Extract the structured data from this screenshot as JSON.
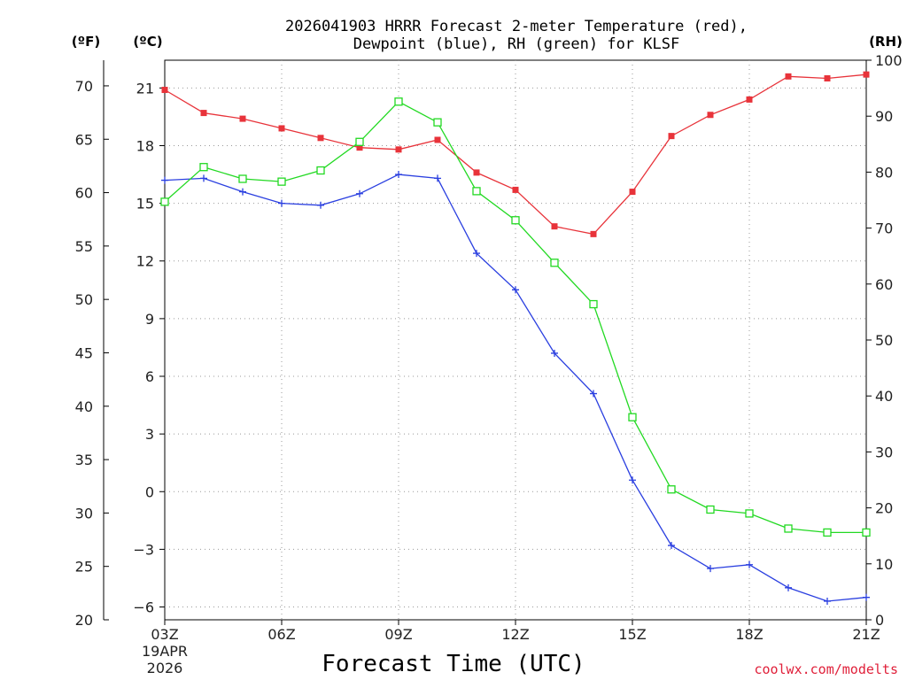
{
  "chart_data": {
    "type": "line",
    "title_line1": "2026041903 HRRR Forecast 2-meter Temperature (red),",
    "title_line2": "Dewpoint (blue), RH (green) for KLSF",
    "xlabel": "Forecast Time (UTC)",
    "date_label_line1": "19APR",
    "date_label_line2": "2026",
    "credit": "coolwx.com/modelts",
    "credit_color": "#e0203a",
    "unit_f": "(ºF)",
    "unit_c": "(ºC)",
    "unit_rh": "(RH)",
    "hours": [
      3,
      4,
      5,
      6,
      7,
      8,
      9,
      10,
      11,
      12,
      13,
      14,
      15,
      16,
      17,
      18,
      19,
      20,
      21
    ],
    "x_ticks": [
      {
        "hour": 3,
        "label": "03Z"
      },
      {
        "hour": 6,
        "label": "06Z"
      },
      {
        "hour": 9,
        "label": "09Z"
      },
      {
        "hour": 12,
        "label": "12Z"
      },
      {
        "hour": 15,
        "label": "15Z"
      },
      {
        "hour": 18,
        "label": "18Z"
      },
      {
        "hour": 21,
        "label": "21Z"
      }
    ],
    "xlim": [
      3,
      21
    ],
    "celsius_ticks": [
      "21",
      "18",
      "15",
      "12",
      "9",
      "6",
      "3",
      "0",
      "−3",
      "−6"
    ],
    "celsius_tick_values": [
      21,
      18,
      15,
      12,
      9,
      6,
      3,
      0,
      -3,
      -6
    ],
    "fahrenheit_ticks": [
      "70",
      "65",
      "60",
      "55",
      "50",
      "45",
      "40",
      "35",
      "30",
      "25",
      "20"
    ],
    "fahrenheit_tick_values": [
      70,
      65,
      60,
      55,
      50,
      45,
      40,
      35,
      30,
      25,
      20
    ],
    "rh_ticks": [
      "100",
      "90",
      "80",
      "70",
      "60",
      "50",
      "40",
      "30",
      "20",
      "10",
      "0"
    ],
    "rh_tick_values": [
      100,
      90,
      80,
      70,
      60,
      50,
      40,
      30,
      20,
      10,
      0
    ],
    "ylim_f": [
      20,
      72.4
    ],
    "rh_range": [
      0,
      100
    ],
    "series": [
      {
        "name": "Temperature",
        "unit": "C",
        "color": "#e8333a",
        "marker": "filled-square",
        "values": [
          20.9,
          19.7,
          19.4,
          18.9,
          18.4,
          17.9,
          17.8,
          18.3,
          16.6,
          15.7,
          13.8,
          13.4,
          15.6,
          18.5,
          19.6,
          20.4,
          21.6,
          21.5,
          21.7
        ]
      },
      {
        "name": "Dewpoint",
        "unit": "C",
        "color": "#2a3fe0",
        "marker": "plus",
        "values": [
          16.2,
          16.3,
          15.6,
          15.0,
          14.9,
          15.5,
          16.5,
          16.3,
          12.4,
          10.5,
          7.2,
          5.1,
          0.6,
          -2.8,
          -4.0,
          -3.8,
          -5.0,
          -5.7,
          -5.5
        ]
      },
      {
        "name": "RH",
        "unit": "%",
        "color": "#22d922",
        "marker": "open-square",
        "values": [
          74.7,
          80.9,
          78.8,
          78.3,
          80.3,
          85.4,
          92.6,
          88.9,
          76.6,
          71.4,
          63.8,
          56.4,
          36.2,
          23.3,
          19.7,
          19.0,
          16.3,
          15.6,
          15.6
        ]
      }
    ]
  }
}
